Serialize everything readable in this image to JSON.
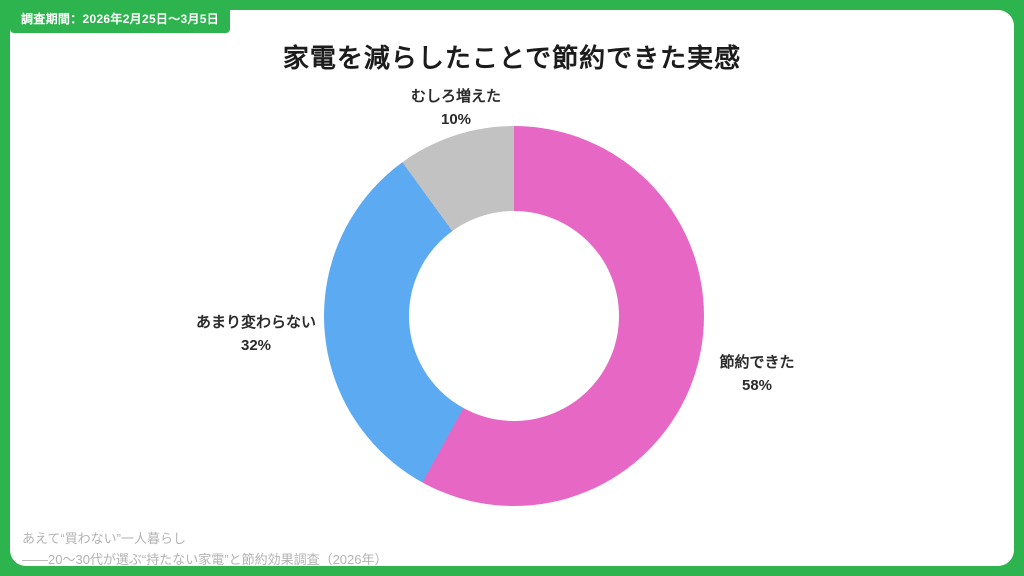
{
  "theme": {
    "frame_color": "#2EB44F",
    "card_color": "#FFFFFF",
    "title_color": "#1C1C1C",
    "footer_color": "#B3B3B3"
  },
  "header": {
    "badge_text": "調査期間：2026年2月25日〜3月5日"
  },
  "chart_data": {
    "type": "pie",
    "subtype": "donut",
    "title": "家電を減らしたことで節約できた実感",
    "start_angle_deg": 0,
    "direction": "clockwise",
    "legend": "none",
    "segments": [
      {
        "label": "節約できた",
        "value": 58,
        "pct_label": "58%",
        "color": "#E767C4"
      },
      {
        "label": "あまり変わらない",
        "value": 32,
        "pct_label": "32%",
        "color": "#5CAAF2"
      },
      {
        "label": "むしろ増えた",
        "value": 10,
        "pct_label": "10%",
        "color": "#C2C2C2"
      }
    ]
  },
  "footer": {
    "line1": "あえて“買わない”一人暮らし",
    "line2": "——20〜30代が選ぶ“持たない家電”と節約効果調査（2026年）"
  }
}
